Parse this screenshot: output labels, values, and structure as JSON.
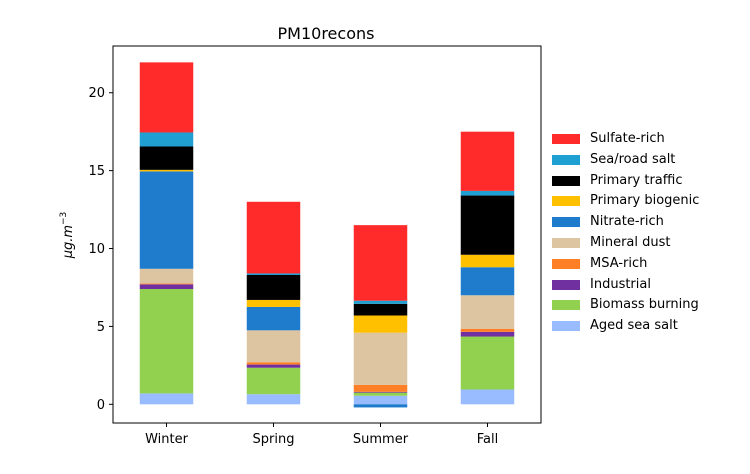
{
  "chart_data": {
    "type": "bar",
    "stacked": true,
    "title": "PM10recons",
    "xlabel": "",
    "ylabel_parts": [
      "μg.m",
      "−3"
    ],
    "categories": [
      "Winter",
      "Spring",
      "Summer",
      "Fall"
    ],
    "ylim": [
      -1.2,
      23
    ],
    "yticks": [
      0,
      5,
      10,
      15,
      20
    ],
    "ytick_labels": [
      "0",
      "5",
      "10",
      "15",
      "20"
    ],
    "grid": false,
    "legend_position": "right",
    "series": [
      {
        "name": "Aged sea salt",
        "color": "#99bbff",
        "values": [
          0.7,
          0.65,
          0.55,
          0.95
        ]
      },
      {
        "name": "Biomass burning",
        "color": "#92d050",
        "values": [
          6.7,
          1.7,
          0.2,
          3.4
        ]
      },
      {
        "name": "Industrial",
        "color": "#7030a0",
        "values": [
          0.3,
          0.2,
          0.05,
          0.3
        ]
      },
      {
        "name": "MSA-rich",
        "color": "#ff7f27",
        "values": [
          0.05,
          0.15,
          0.45,
          0.2
        ]
      },
      {
        "name": "Mineral dust",
        "color": "#dcc5a0",
        "values": [
          0.95,
          2.05,
          3.35,
          2.15
        ]
      },
      {
        "name": "Nitrate-rich",
        "color": "#1f7bcc",
        "values": [
          6.25,
          1.5,
          -0.2,
          1.8
        ]
      },
      {
        "name": "Primary biogenic",
        "color": "#ffc000",
        "values": [
          0.1,
          0.45,
          1.1,
          0.8
        ]
      },
      {
        "name": "Primary traffic",
        "color": "#000000",
        "values": [
          1.5,
          1.6,
          0.75,
          3.8
        ]
      },
      {
        "name": "Sea/road salt",
        "color": "#1f9fd2",
        "values": [
          0.9,
          0.1,
          0.2,
          0.3
        ]
      },
      {
        "name": "Sulfate-rich",
        "color": "#ff2a2a",
        "values": [
          4.5,
          4.6,
          4.85,
          3.8
        ]
      }
    ]
  }
}
